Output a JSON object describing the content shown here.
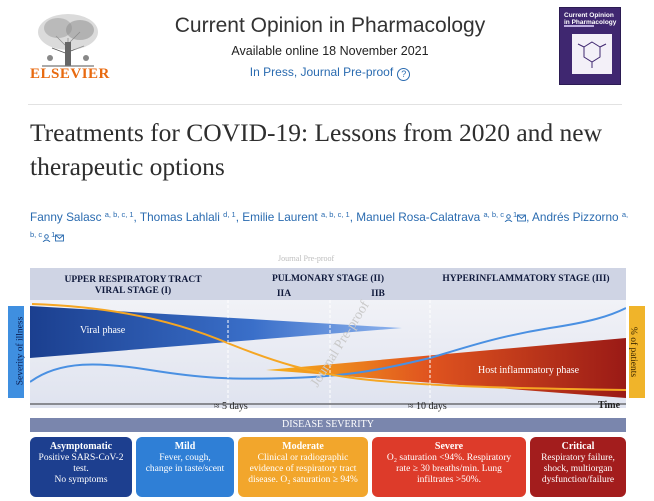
{
  "header": {
    "publisher": "ELSEVIER",
    "journal": "Current Opinion in Pharmacology",
    "available": "Available online 18 November 2021",
    "status": "In Press, Journal Pre-proof",
    "help_icon": "question-circle-icon",
    "cover_title": "Current Opinion in Pharmacology"
  },
  "article": {
    "title": "Treatments for COVID-19: Lessons from 2020 and new therapeutic options",
    "authors": [
      {
        "name": "Fanny Salasc",
        "aff": "a, b, c, 1",
        "sep": ", "
      },
      {
        "name": "Thomas Lahlali",
        "aff": "d, 1",
        "sep": ", "
      },
      {
        "name": "Emilie Laurent",
        "aff": "a, b, c, 1",
        "sep": ", "
      },
      {
        "name": "Manuel Rosa-Calatrava",
        "aff": "a, b, c",
        "sep": ", "
      },
      {
        "name": "Andrés Pizzorno",
        "aff": "a, b, c",
        "sep": ""
      }
    ]
  },
  "figure": {
    "watermarks": [
      "Journal Pre-proof",
      "Journal Pre-proof"
    ],
    "stages": {
      "s1_line1": "UPPER RESPIRATORY TRACT",
      "s1_line2": "VIRAL STAGE (I)",
      "s2": "PULMONARY STAGE (II)",
      "s2a": "IIA",
      "s2b": "IIB",
      "s3": "HYPERINFLAMMATORY STAGE (III)"
    },
    "left_axis": "Severity of illness",
    "right_axis": "% of patients",
    "viral_phase": "Viral phase",
    "host_phase": "Host inflammatory phase",
    "tick_5": "≈ 5 days",
    "tick_10": "≈ 10 days",
    "time_label": "Time",
    "severity_header": "DISEASE SEVERITY",
    "colors": {
      "viral": "#1b3f8f",
      "host": "#b8231b",
      "curve": "#4a90e2",
      "orange_curve": "#f5a623"
    },
    "categories": [
      {
        "title": "Asymptomatic",
        "lines": [
          "Positive SARS-CoV-2",
          "test.",
          "No symptoms"
        ],
        "color": "#1d3f8f"
      },
      {
        "title": "Mild",
        "lines": [
          "Fever, cough,",
          "change in taste/scent"
        ],
        "color": "#2f7fd6"
      },
      {
        "title": "Moderate",
        "lines": [
          "Clinical or radiographic",
          "evidence of respiratory tract",
          "disease. O₂ saturation ≥ 94%"
        ],
        "color": "#f2a62c"
      },
      {
        "title": "Severe",
        "lines": [
          "O₂ saturation <94%. Respiratory",
          "rate ≥ 30 breaths/min. Lung",
          "infiltrates >50%."
        ],
        "color": "#dd3b2a"
      },
      {
        "title": "Critical",
        "lines": [
          "Respiratory failure,",
          "shock, multiorgan",
          "dysfunction/failure"
        ],
        "color": "#a31d1d"
      }
    ]
  }
}
